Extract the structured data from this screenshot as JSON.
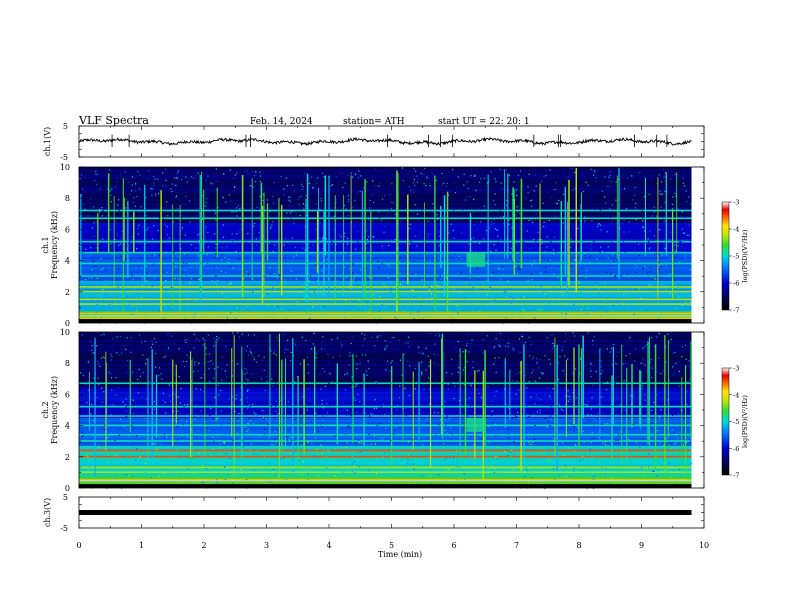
{
  "header": {
    "title": "VLF  Spectra",
    "date": "Feb. 14, 2024",
    "station": "station= ATH",
    "start": "start  UT  =    22: 20: 1"
  },
  "chart_data": {
    "type": "heatmap",
    "x_axis": {
      "label": "Time  (min)",
      "range": [
        0,
        10
      ],
      "ticks": [
        "0",
        "1",
        "2",
        "3",
        "4",
        "5",
        "6",
        "7",
        "8",
        "9",
        "10"
      ]
    },
    "panels": [
      {
        "name": "ch.1(V)",
        "type": "line",
        "ylabel": "ch.1(V)",
        "ylim": [
          -5,
          5
        ],
        "yticks": [
          "5",
          "-5"
        ],
        "approx_level": 0
      },
      {
        "name": "ch.1",
        "type": "heatmap",
        "ylabel_line1": "ch.1",
        "ylabel_line2": "Frequency  (kHz)",
        "ylim": [
          0,
          10
        ],
        "yticks": [
          "10",
          "8",
          "6",
          "4",
          "2",
          "0"
        ],
        "bright_bands_khz": [
          0.3,
          0.6,
          1.2,
          1.5,
          2.0,
          2.3,
          3.0,
          3.8,
          4.5,
          5.2,
          6.7,
          7.2
        ],
        "colorbar": {
          "label": "log(PSD)(V²/Hz)",
          "range": [
            -7,
            -3
          ],
          "ticks": [
            "-3",
            "-4",
            "-5",
            "-6",
            "-7"
          ]
        }
      },
      {
        "name": "ch.2",
        "type": "heatmap",
        "ylabel_line1": "ch.2",
        "ylabel_line2": "Frequency  (kHz)",
        "ylim": [
          0,
          10
        ],
        "yticks": [
          "10",
          "8",
          "6",
          "4",
          "2",
          "0"
        ],
        "bright_bands_khz": [
          0.5,
          1.0,
          1.3,
          2.0,
          2.4,
          3.0,
          3.4,
          4.0,
          4.6,
          5.2,
          6.7
        ],
        "colorbar": {
          "label": "log(PSD)(V²/Hz)",
          "range": [
            -7,
            -3
          ],
          "ticks": [
            "-3",
            "-4",
            "-5",
            "-6",
            "-7"
          ]
        }
      },
      {
        "name": "ch.3(V)",
        "type": "line",
        "ylabel": "ch.3(V)",
        "ylim": [
          -5,
          5
        ],
        "yticks": [
          "5",
          "-5"
        ],
        "approx_level": 0
      }
    ],
    "grid": false
  },
  "colors": {
    "spectrum_low": "#000000",
    "spectrum_mid": "#0000c8",
    "spectrum_cyan": "#00c8ff",
    "spectrum_green": "#32dc32",
    "spectrum_yellow": "#ffff00",
    "spectrum_red": "#e60000",
    "spectrum_high": "#ffffff"
  }
}
